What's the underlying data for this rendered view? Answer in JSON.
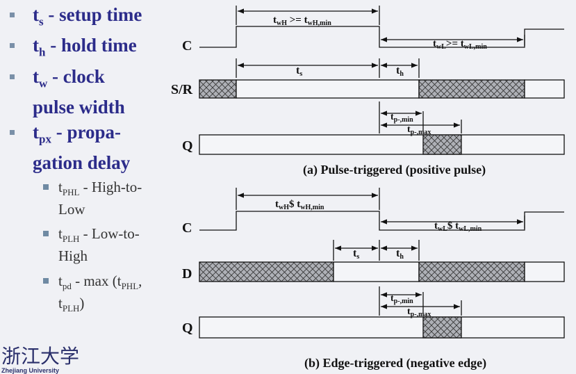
{
  "bullets": [
    {
      "sym": "t",
      "sub": "s",
      "rest": " - setup time"
    },
    {
      "sym": "t",
      "sub": "h",
      "rest": " - hold time"
    },
    {
      "sym": "t",
      "sub": "w",
      "rest": " - clock",
      "line2": "pulse width"
    },
    {
      "sym": "t",
      "sub": "px",
      "rest": " - propa-",
      "line2": "gation delay"
    }
  ],
  "subbullets": [
    {
      "sym": "t",
      "sub": "PHL",
      "rest": " - High-to-",
      "line2": "Low"
    },
    {
      "sym": "t",
      "sub": "PLH",
      "rest": " - Low-to-",
      "line2": "High"
    },
    {
      "sym": "t",
      "sub": "pd",
      "rest": " - max (t",
      "sub2": "PHL",
      "rest2": ",",
      "line2_sym": "t",
      "line2_sub": "PLH",
      "line2_rest": ")"
    }
  ],
  "diagram_a": {
    "caption": "(a) Pulse-triggered (positive pulse)",
    "signal_c": "C",
    "signal_sr": "S/R",
    "signal_q": "Q",
    "twh": {
      "a": "t",
      "a_sub": "wH",
      "op": " >= ",
      "b": "t",
      "b_sub": "wH,min"
    },
    "twl": {
      "a": "t",
      "a_sub": "wL",
      "op": ">= ",
      "b": "t",
      "b_sub": "wL,min"
    },
    "ts": {
      "a": "t",
      "a_sub": "s"
    },
    "th": {
      "a": "t",
      "a_sub": "h"
    },
    "tpmin": {
      "a": "t",
      "a_sub": "p-,min"
    },
    "tpmax": {
      "a": "t",
      "a_sub": "p-,max"
    }
  },
  "diagram_b": {
    "caption": "(b) Edge-triggered (negative edge)",
    "signal_c": "C",
    "signal_d": "D",
    "signal_q": "Q",
    "twh": {
      "a": "t",
      "a_sub": "wH",
      "op": "$ ",
      "b": "t",
      "b_sub": "wH,min"
    },
    "twl": {
      "a": "t",
      "a_sub": "wL",
      "op": "$ ",
      "b": "t",
      "b_sub": "wL,min"
    },
    "ts": {
      "a": "t",
      "a_sub": "s"
    },
    "th": {
      "a": "t",
      "a_sub": "h"
    },
    "tpmin": {
      "a": "t",
      "a_sub": "p-,min"
    },
    "tpmax": {
      "a": "t",
      "a_sub": "p-,max"
    }
  },
  "logo": {
    "chars": "浙江大学",
    "subtitle": "Zhejiang University"
  },
  "colors": {
    "bullet_text": "#2c2c8a",
    "bullet_square": "#7a90a8",
    "background": "#f0f1f5",
    "line": "#111111"
  }
}
